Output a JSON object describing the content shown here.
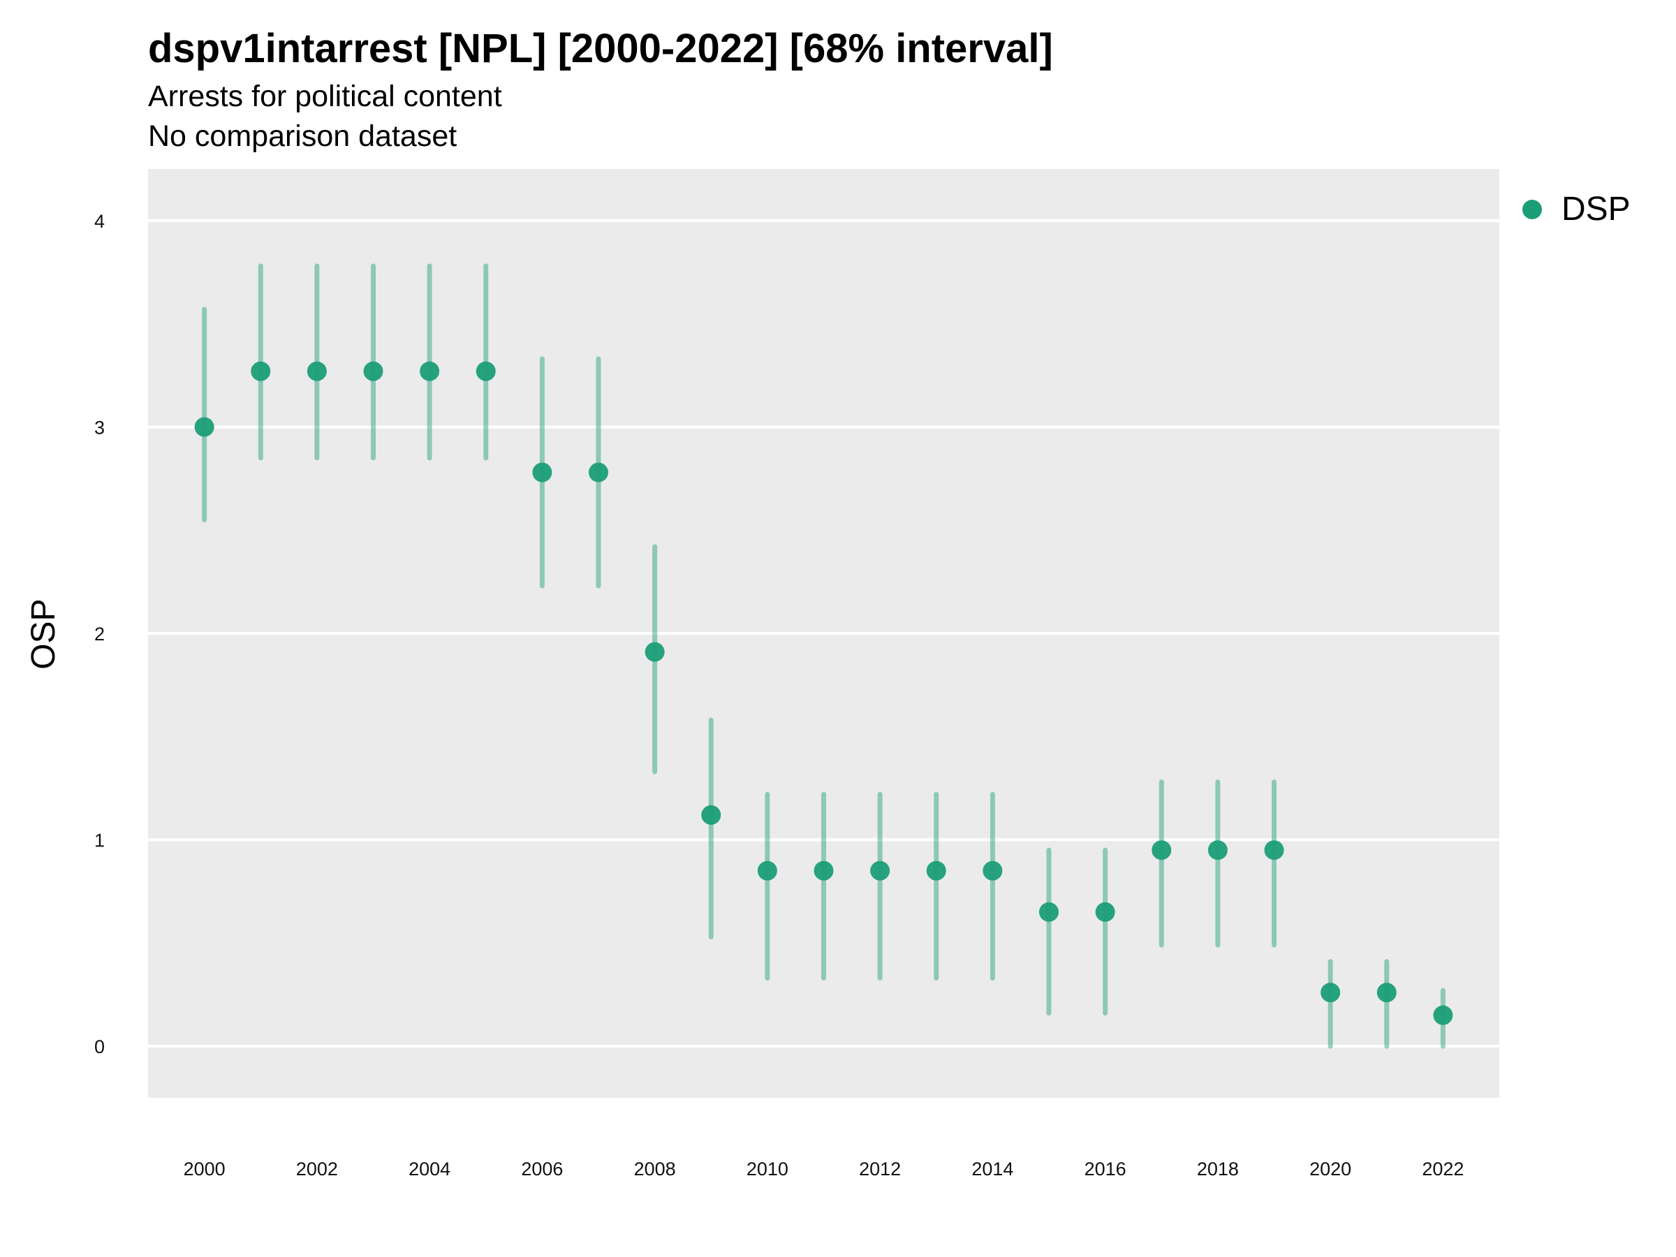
{
  "chart_data": {
    "type": "scatter",
    "title": "dspv1intarrest [NPL] [2000-2022] [68% interval]",
    "subtitle": "Arrests for political content",
    "caption": "No comparison dataset",
    "xlabel": "",
    "ylabel": "OSP",
    "xlim": [
      1999.0,
      2023.0
    ],
    "ylim": [
      -0.25,
      4.25
    ],
    "x_ticks": [
      2000,
      2002,
      2004,
      2006,
      2008,
      2010,
      2012,
      2014,
      2016,
      2018,
      2020,
      2022
    ],
    "y_ticks": [
      0,
      1,
      2,
      3,
      4
    ],
    "grid": true,
    "legend_position": "right",
    "series": [
      {
        "name": "DSP",
        "color": "#1b9e77",
        "x": [
          2000,
          2001,
          2002,
          2003,
          2004,
          2005,
          2006,
          2007,
          2008,
          2009,
          2010,
          2011,
          2012,
          2013,
          2014,
          2015,
          2016,
          2017,
          2018,
          2019,
          2020,
          2021,
          2022
        ],
        "values": [
          3.0,
          3.27,
          3.27,
          3.27,
          3.27,
          3.27,
          2.78,
          2.78,
          1.91,
          1.12,
          0.85,
          0.85,
          0.85,
          0.85,
          0.85,
          0.65,
          0.65,
          0.95,
          0.95,
          0.95,
          0.26,
          0.26,
          0.15
        ],
        "lower": [
          2.55,
          2.85,
          2.85,
          2.85,
          2.85,
          2.85,
          2.23,
          2.23,
          1.33,
          0.53,
          0.33,
          0.33,
          0.33,
          0.33,
          0.33,
          0.16,
          0.16,
          0.49,
          0.49,
          0.49,
          0.0,
          0.0,
          0.0
        ],
        "upper": [
          3.57,
          3.78,
          3.78,
          3.78,
          3.78,
          3.78,
          3.33,
          3.33,
          2.42,
          1.58,
          1.22,
          1.22,
          1.22,
          1.22,
          1.22,
          0.95,
          0.95,
          1.28,
          1.28,
          1.28,
          0.41,
          0.41,
          0.27
        ]
      }
    ]
  }
}
